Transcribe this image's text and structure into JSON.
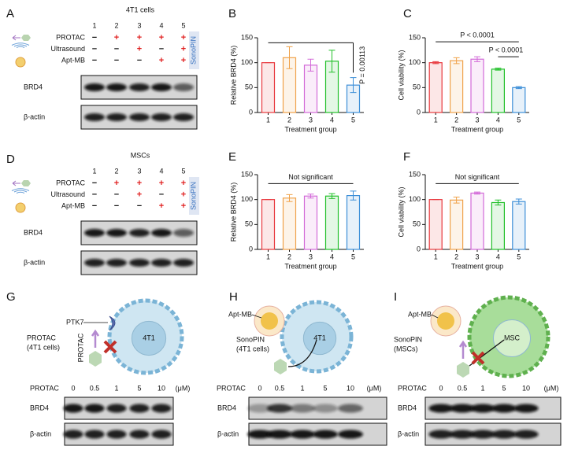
{
  "blots_top": [
    {
      "letter": "A",
      "title": "4T1 cells",
      "lanes": [
        "1",
        "2",
        "3",
        "4",
        "5"
      ],
      "rows": [
        {
          "label": "PROTAC",
          "marks": [
            "−",
            "+",
            "+",
            "+",
            "+"
          ]
        },
        {
          "label": "Ultrasound",
          "marks": [
            "−",
            "−",
            "+",
            "−",
            "+"
          ]
        },
        {
          "label": "Apt-MB",
          "marks": [
            "−",
            "−",
            "−",
            "+",
            "+"
          ]
        }
      ],
      "sidebar": "SonoPIN",
      "blot_rows": [
        "BRD4",
        "β-actin"
      ]
    },
    {
      "letter": "D",
      "title": "MSCs",
      "lanes": [
        "1",
        "2",
        "3",
        "4",
        "5"
      ],
      "rows": [
        {
          "label": "PROTAC",
          "marks": [
            "−",
            "+",
            "+",
            "+",
            "+"
          ]
        },
        {
          "label": "Ultrasound",
          "marks": [
            "−",
            "−",
            "+",
            "−",
            "+"
          ]
        },
        {
          "label": "Apt-MB",
          "marks": [
            "−",
            "−",
            "−",
            "+",
            "+"
          ]
        }
      ],
      "sidebar": "SonoPIN",
      "blot_rows": [
        "BRD4",
        "β-actin"
      ]
    }
  ],
  "chart_data": [
    {
      "type": "bar",
      "panel": "B",
      "ylabel": "Relative BRD4  (%)",
      "xlabel": "Treatment group",
      "categories": [
        "1",
        "2",
        "3",
        "4",
        "5"
      ],
      "values": [
        100,
        110,
        95,
        103,
        55
      ],
      "errors": [
        0,
        22,
        12,
        22,
        15
      ],
      "colors": [
        "#e8383d",
        "#f0a24a",
        "#d36ad8",
        "#22c02a",
        "#3d8fd8"
      ],
      "ylim": [
        0,
        150
      ],
      "yticks": [
        0,
        50,
        100,
        150
      ],
      "annotations": [
        "P = 0.00113"
      ]
    },
    {
      "type": "bar",
      "panel": "C",
      "ylabel": "Cell viability (%)",
      "xlabel": "Treatment group",
      "categories": [
        "1",
        "2",
        "3",
        "4",
        "5"
      ],
      "values": [
        100,
        104,
        107,
        87,
        50
      ],
      "errors": [
        2,
        6,
        5,
        2,
        2
      ],
      "colors": [
        "#e8383d",
        "#f0a24a",
        "#d36ad8",
        "#22c02a",
        "#3d8fd8"
      ],
      "ylim": [
        0,
        150
      ],
      "yticks": [
        0,
        50,
        100,
        150
      ],
      "annotations": [
        "P < 0.0001",
        "P < 0.0001"
      ]
    },
    {
      "type": "bar",
      "panel": "E",
      "ylabel": "Relative BRD4  (%)",
      "xlabel": "Treatment group",
      "categories": [
        "1",
        "2",
        "3",
        "4",
        "5"
      ],
      "values": [
        100,
        103,
        107,
        107,
        108
      ],
      "errors": [
        0,
        7,
        4,
        5,
        9
      ],
      "colors": [
        "#e8383d",
        "#f0a24a",
        "#d36ad8",
        "#22c02a",
        "#3d8fd8"
      ],
      "ylim": [
        0,
        150
      ],
      "yticks": [
        0,
        50,
        100,
        150
      ],
      "annotations": [
        "Not significant"
      ]
    },
    {
      "type": "bar",
      "panel": "F",
      "ylabel": "Cell viability (%)",
      "xlabel": "Treatment group",
      "categories": [
        "1",
        "2",
        "3",
        "4",
        "5"
      ],
      "values": [
        100,
        99,
        113,
        94,
        96
      ],
      "errors": [
        0,
        6,
        2,
        5,
        5
      ],
      "colors": [
        "#e8383d",
        "#f0a24a",
        "#d36ad8",
        "#22c02a",
        "#3d8fd8"
      ],
      "ylim": [
        0,
        150
      ],
      "yticks": [
        0,
        50,
        100,
        150
      ],
      "annotations": [
        "Not significant"
      ]
    }
  ],
  "cells": [
    {
      "letter": "G",
      "receptor": "PTK7",
      "label": [
        "PROTAC",
        "(4T1 cells)"
      ],
      "drug": "PROTAC",
      "cell": "4T1"
    },
    {
      "letter": "H",
      "receptor": "Apt-MB",
      "label": [
        "SonoPIN",
        "(4T1 cells)"
      ],
      "cell": "4T1"
    },
    {
      "letter": "I",
      "receptor": "Apt-MB",
      "label": [
        "SonoPIN",
        "(MSCs)"
      ],
      "cell": "MSC"
    }
  ],
  "blots_bottom": [
    {
      "header": "PROTAC",
      "doses": [
        "0",
        "0.5",
        "1",
        "5",
        "10"
      ],
      "unit": "(μM)",
      "rows": [
        "BRD4",
        "β-actin"
      ]
    },
    {
      "header": "PROTAC",
      "doses": [
        "0",
        "0.5",
        "1",
        "5",
        "10"
      ],
      "unit": "(μM)",
      "rows": [
        "BRD4",
        "β-actin"
      ]
    },
    {
      "header": "PROTAC",
      "doses": [
        "0",
        "0.5",
        "1",
        "5",
        "10"
      ],
      "unit": "(μM)",
      "rows": [
        "BRD4",
        "β-actin"
      ]
    }
  ]
}
